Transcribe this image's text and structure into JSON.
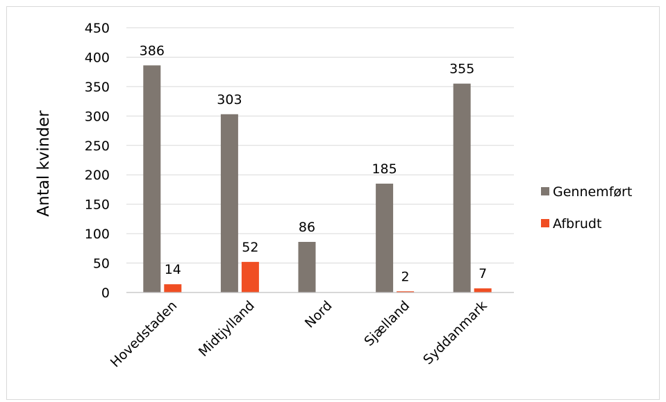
{
  "chart_data": {
    "type": "bar",
    "title": "",
    "xlabel": "",
    "ylabel": "Antal kvinder",
    "ylim": [
      0,
      450
    ],
    "yticks": [
      0,
      50,
      100,
      150,
      200,
      250,
      300,
      350,
      400,
      450
    ],
    "grid": true,
    "legend_position": "right",
    "categories": [
      "Hovedstaden",
      "Midtjylland",
      "Nord",
      "Sjælland",
      "Syddanmark"
    ],
    "series": [
      {
        "name": "Gennemført",
        "color": "#7f7770",
        "values": [
          386,
          303,
          86,
          185,
          355
        ],
        "labels": [
          "386",
          "303",
          "86",
          "185",
          "355"
        ]
      },
      {
        "name": "Afbrudt",
        "color": "#f04e23",
        "values": [
          14,
          52,
          0,
          2,
          7
        ],
        "labels": [
          "14",
          "52",
          "",
          "2",
          "7"
        ]
      }
    ]
  }
}
